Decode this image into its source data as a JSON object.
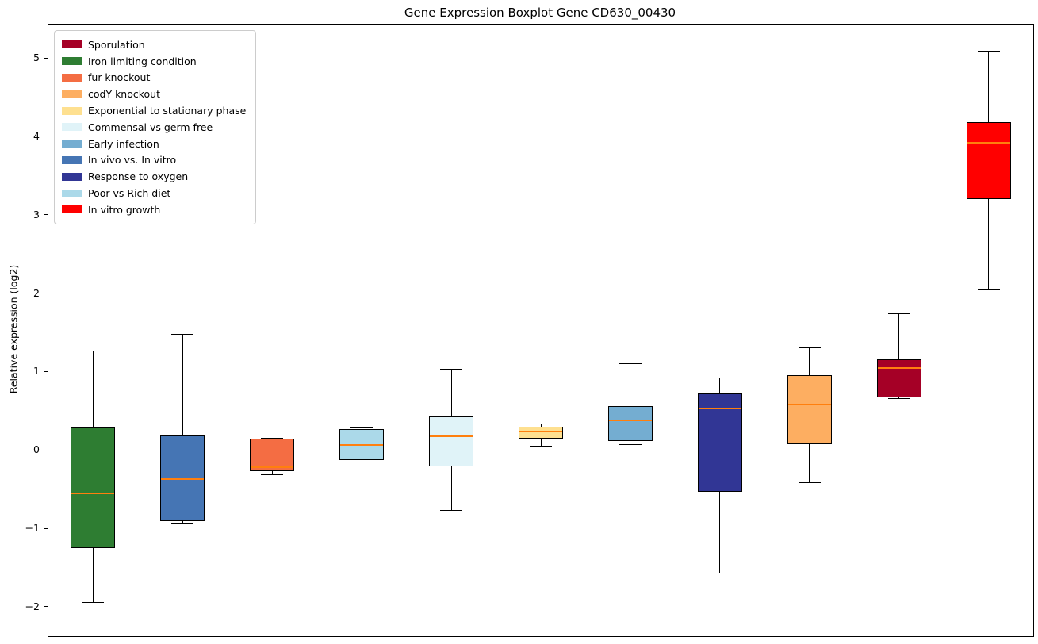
{
  "chart_data": {
    "type": "boxplot",
    "title": "Gene Expression Boxplot Gene CD630_00430",
    "ylabel": "Relative expression (log2)",
    "xlabel": "",
    "ylim": [
      -2.36,
      5.44
    ],
    "yticks": [
      -2,
      -1,
      0,
      1,
      2,
      3,
      4,
      5
    ],
    "xtick_labels": [],
    "grid": false,
    "legend_position": "upper-left",
    "median_color": "#ff7f0e",
    "legend": [
      {
        "label": "Sporulation",
        "color": "#a50026"
      },
      {
        "label": "Iron limiting condition",
        "color": "#2e7d32"
      },
      {
        "label": "fur knockout",
        "color": "#f46d43"
      },
      {
        "label": "codY knockout",
        "color": "#fdae61"
      },
      {
        "label": "Exponential to stationary phase",
        "color": "#fee090"
      },
      {
        "label": "Commensal vs germ free",
        "color": "#e0f3f8"
      },
      {
        "label": "Early infection",
        "color": "#74add1"
      },
      {
        "label": "In vivo vs. In vitro",
        "color": "#4575b4"
      },
      {
        "label": "Response to oxygen",
        "color": "#313695"
      },
      {
        "label": "Poor vs Rich diet",
        "color": "#abd9e9"
      },
      {
        "label": "In vitro growth",
        "color": "#ff0000"
      }
    ],
    "series": [
      {
        "label": "Iron limiting condition",
        "color": "#2e7d32",
        "whisker_low": -1.93,
        "q1": -1.24,
        "median": -0.54,
        "q3": 0.3,
        "whisker_high": 1.28
      },
      {
        "label": "In vivo vs. In vitro",
        "color": "#4575b4",
        "whisker_low": -0.93,
        "q1": -0.9,
        "median": -0.36,
        "q3": 0.2,
        "whisker_high": 1.49
      },
      {
        "label": "fur knockout",
        "color": "#f46d43",
        "whisker_low": -0.3,
        "q1": -0.26,
        "median": -0.21,
        "q3": 0.15,
        "whisker_high": 0.16
      },
      {
        "label": "Poor vs Rich diet",
        "color": "#abd9e9",
        "whisker_low": -0.62,
        "q1": -0.12,
        "median": 0.07,
        "q3": 0.28,
        "whisker_high": 0.3
      },
      {
        "label": "Commensal vs germ free",
        "color": "#e0f3f8",
        "whisker_low": -0.76,
        "q1": -0.2,
        "median": 0.19,
        "q3": 0.44,
        "whisker_high": 1.04
      },
      {
        "label": "Exponential to stationary phase",
        "color": "#fee090",
        "whisker_low": 0.06,
        "q1": 0.15,
        "median": 0.25,
        "q3": 0.31,
        "whisker_high": 0.35
      },
      {
        "label": "Early infection",
        "color": "#74add1",
        "whisker_low": 0.08,
        "q1": 0.12,
        "median": 0.39,
        "q3": 0.57,
        "whisker_high": 1.12
      },
      {
        "label": "Response to oxygen",
        "color": "#313695",
        "whisker_low": -1.55,
        "q1": -0.52,
        "median": 0.54,
        "q3": 0.73,
        "whisker_high": 0.93
      },
      {
        "label": "codY knockout",
        "color": "#fdae61",
        "whisker_low": -0.4,
        "q1": 0.08,
        "median": 0.59,
        "q3": 0.96,
        "whisker_high": 1.32
      },
      {
        "label": "Sporulation",
        "color": "#a50026",
        "whisker_low": 0.67,
        "q1": 0.68,
        "median": 1.05,
        "q3": 1.17,
        "whisker_high": 1.75
      },
      {
        "label": "In vitro growth",
        "color": "#ff0000",
        "whisker_low": 2.06,
        "q1": 3.21,
        "median": 3.93,
        "q3": 4.19,
        "whisker_high": 5.1
      }
    ]
  }
}
